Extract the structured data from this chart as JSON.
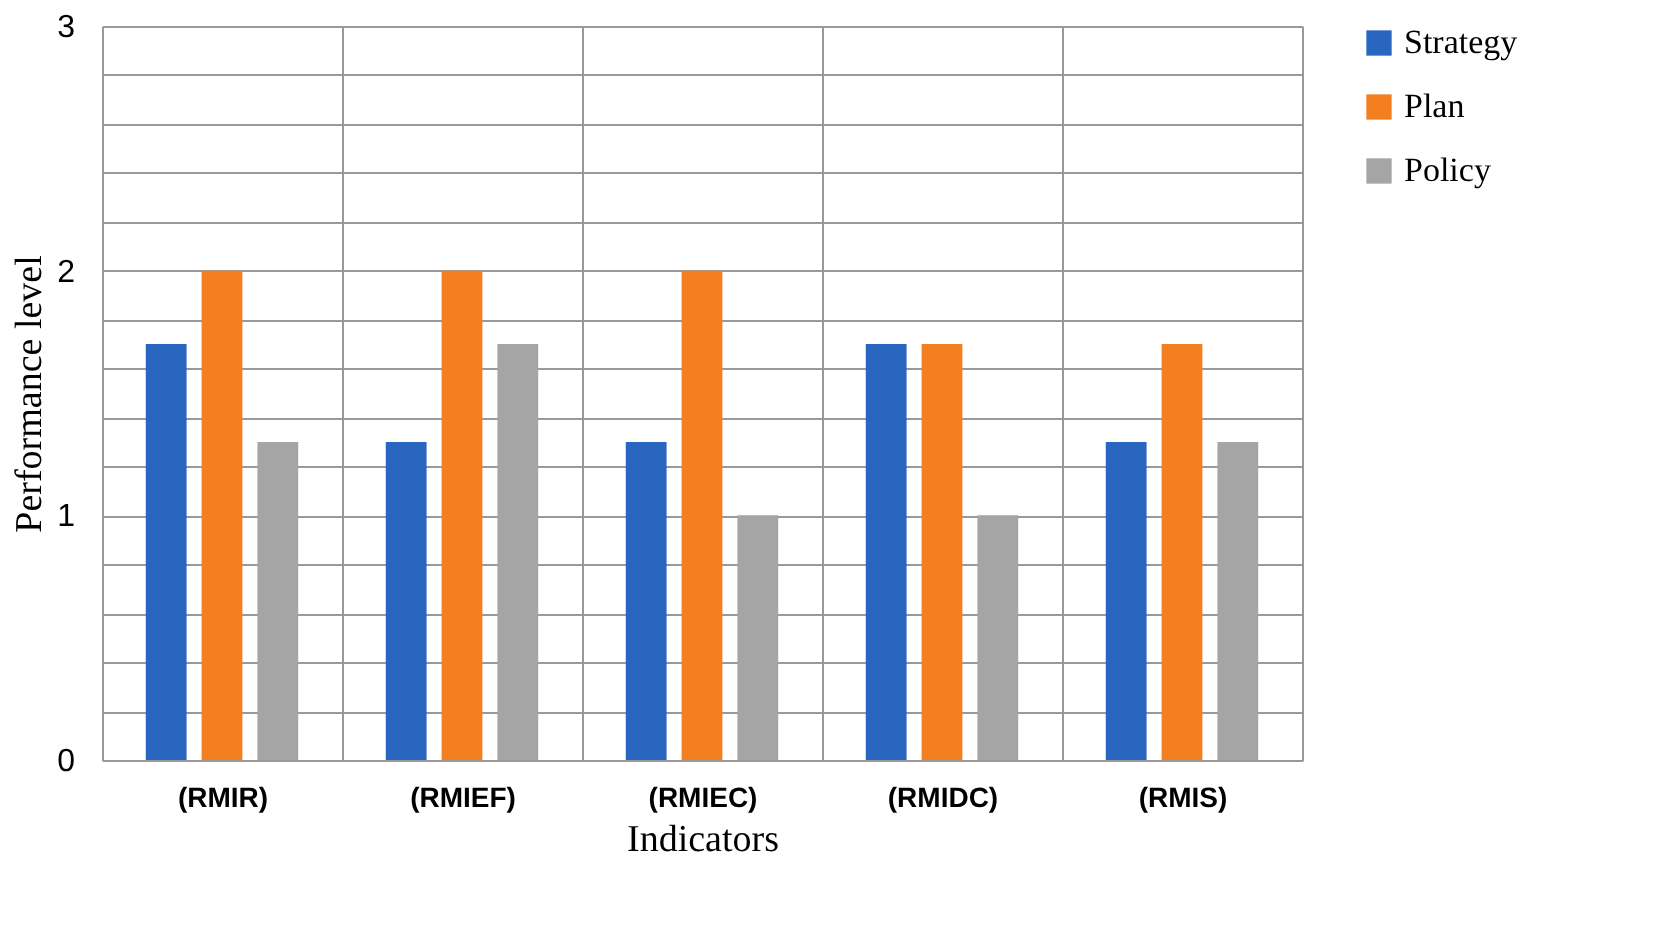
{
  "chart_data": {
    "type": "bar",
    "xlabel": "Indicators",
    "ylabel": "Performance level",
    "categories": [
      "(RMIR)",
      "(RMIEF)",
      "(RMIEC)",
      "(RMIDC)",
      "(RMIS)"
    ],
    "series": [
      {
        "name": "Strategy",
        "color": "#2866c0",
        "values": [
          1.7,
          1.3,
          1.3,
          1.7,
          1.3
        ]
      },
      {
        "name": "Plan",
        "color": "#f47f20",
        "values": [
          2.0,
          2.0,
          2.0,
          1.7,
          1.7
        ]
      },
      {
        "name": "Policy",
        "color": "#a5a5a5",
        "values": [
          1.3,
          1.7,
          1.0,
          1.0,
          1.3
        ]
      }
    ],
    "ylim": [
      0,
      3
    ],
    "yticks": [
      0,
      {
        "value": 0.2,
        "label": null
      },
      {
        "value": 0.4,
        "label": null
      },
      {
        "value": 0.6,
        "label": null
      },
      {
        "value": 0.8,
        "label": null
      },
      1,
      {
        "value": 1.2,
        "label": null
      },
      {
        "value": 1.4,
        "label": null
      },
      {
        "value": 1.6,
        "label": null
      },
      {
        "value": 1.8,
        "label": null
      },
      2,
      {
        "value": 2.2,
        "label": null
      },
      {
        "value": 2.4,
        "label": null
      },
      {
        "value": 2.6,
        "label": null
      },
      {
        "value": 2.8,
        "label": null
      },
      3
    ],
    "grid": true,
    "legend": "right"
  }
}
